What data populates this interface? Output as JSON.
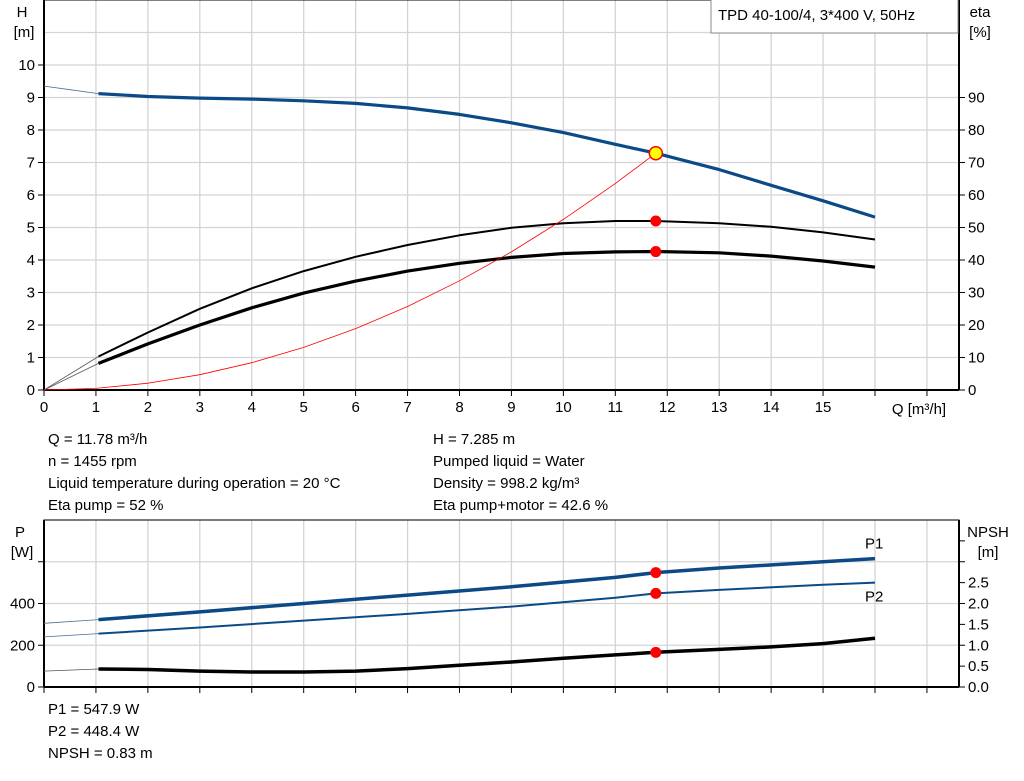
{
  "chart_data": [
    {
      "type": "line",
      "title": "TPD 40-100/4, 3*400 V, 50Hz",
      "xlabel": "Q [m³/h]",
      "ylabel": "H\n[m]",
      "ylabel_left": {
        "name": "H",
        "unit": "[m]"
      },
      "ylabel_right": {
        "name": "eta",
        "unit": "[%]"
      },
      "xlim": [
        0,
        17.6
      ],
      "ylim": [
        0,
        12
      ],
      "ylim_right": [
        0,
        120
      ],
      "x_ticks": [
        "0",
        "1",
        "2",
        "3",
        "4",
        "5",
        "6",
        "7",
        "8",
        "9",
        "10",
        "11",
        "12",
        "13",
        "14",
        "15"
      ],
      "y_ticks": [
        "0",
        "1",
        "2",
        "3",
        "4",
        "5",
        "6",
        "7",
        "8",
        "9",
        "10"
      ],
      "y_ticks_right": [
        "0",
        "10",
        "20",
        "30",
        "40",
        "50",
        "60",
        "70",
        "80",
        "90"
      ],
      "grid": true,
      "series": [
        {
          "id": "head",
          "axis": "left",
          "color": "#0b4a86",
          "extension": [
            [
              0,
              9.35
            ],
            [
              0.5,
              9.24
            ],
            [
              1.05,
              9.12
            ]
          ],
          "points": [
            [
              1.05,
              9.12
            ],
            [
              2,
              9.03
            ],
            [
              3,
              8.98
            ],
            [
              4,
              8.95
            ],
            [
              5,
              8.9
            ],
            [
              6,
              8.82
            ],
            [
              7,
              8.68
            ],
            [
              8,
              8.48
            ],
            [
              9,
              8.22
            ],
            [
              10,
              7.92
            ],
            [
              11,
              7.56
            ],
            [
              11.78,
              7.285
            ],
            [
              13,
              6.78
            ],
            [
              14,
              6.3
            ],
            [
              15,
              5.82
            ],
            [
              16,
              5.32
            ]
          ]
        },
        {
          "id": "eta-pump",
          "axis": "right",
          "color": "#000000",
          "extension": [
            [
              0,
              0
            ],
            [
              1.05,
              10.3
            ]
          ],
          "points": [
            [
              1.05,
              10.3
            ],
            [
              2,
              17.7
            ],
            [
              3,
              25
            ],
            [
              4,
              31.3
            ],
            [
              5,
              36.6
            ],
            [
              6,
              41
            ],
            [
              7,
              44.6
            ],
            [
              8,
              47.6
            ],
            [
              9,
              49.9
            ],
            [
              10,
              51.3
            ],
            [
              11,
              52
            ],
            [
              11.78,
              52
            ],
            [
              13,
              51.3
            ],
            [
              14,
              50.2
            ],
            [
              15,
              48.5
            ],
            [
              16,
              46.3
            ]
          ]
        },
        {
          "id": "eta-pump-motor",
          "axis": "right",
          "color": "#000000",
          "extension": [
            [
              0,
              0
            ],
            [
              1.05,
              8.2
            ]
          ],
          "points": [
            [
              1.05,
              8.2
            ],
            [
              2,
              14.2
            ],
            [
              3,
              20
            ],
            [
              4,
              25.3
            ],
            [
              5,
              29.8
            ],
            [
              6,
              33.5
            ],
            [
              7,
              36.6
            ],
            [
              8,
              39
            ],
            [
              9,
              40.8
            ],
            [
              10,
              42
            ],
            [
              11,
              42.5
            ],
            [
              11.78,
              42.6
            ],
            [
              13,
              42.2
            ],
            [
              14,
              41.2
            ],
            [
              15,
              39.7
            ],
            [
              16,
              37.8
            ]
          ]
        },
        {
          "id": "system-curve",
          "axis": "left",
          "color": "#ff0000",
          "points": [
            [
              0,
              0
            ],
            [
              1,
              0.05
            ],
            [
              2,
              0.21
            ],
            [
              3,
              0.47
            ],
            [
              4,
              0.84
            ],
            [
              5,
              1.31
            ],
            [
              6,
              1.89
            ],
            [
              7,
              2.57
            ],
            [
              8,
              3.36
            ],
            [
              9,
              4.25
            ],
            [
              10,
              5.25
            ],
            [
              11,
              6.35
            ],
            [
              11.78,
              7.285
            ]
          ]
        }
      ],
      "markers": [
        {
          "id": "duty-point-head",
          "x": 11.78,
          "y": 7.285,
          "axis": "left",
          "fill": "#ffff00",
          "stroke": "#ff0000"
        },
        {
          "id": "duty-point-eta-pump",
          "x": 11.78,
          "y": 52,
          "axis": "right",
          "fill": "#ff0000"
        },
        {
          "id": "duty-point-eta-pump-motor",
          "x": 11.78,
          "y": 42.6,
          "axis": "right",
          "fill": "#ff0000"
        }
      ]
    },
    {
      "type": "line",
      "ylabel_left": {
        "name": "P",
        "unit": "[W]"
      },
      "ylabel_right": {
        "name": "NPSH",
        "unit": "[m]"
      },
      "xlim": [
        0,
        17.6
      ],
      "ylim": [
        0,
        800
      ],
      "ylim_right": [
        0,
        4
      ],
      "y_ticks": [
        "0",
        "200",
        "400"
      ],
      "y_ticks_right": [
        "0.0",
        "0.5",
        "1.0",
        "1.5",
        "2.0",
        "2.5"
      ],
      "grid": true,
      "series": [
        {
          "id": "p1",
          "name": "P1",
          "axis": "left",
          "color": "#0b4a86",
          "extension": [
            [
              0,
              305
            ],
            [
              1.05,
              323
            ]
          ],
          "points": [
            [
              1.05,
              323
            ],
            [
              3,
              360
            ],
            [
              5,
              400
            ],
            [
              7,
              440
            ],
            [
              9,
              480
            ],
            [
              11,
              525
            ],
            [
              11.78,
              547.9
            ],
            [
              13,
              570
            ],
            [
              15,
              600
            ],
            [
              16,
              615
            ]
          ]
        },
        {
          "id": "p2",
          "name": "P2",
          "axis": "left",
          "color": "#0b4a86",
          "extension": [
            [
              0,
              240
            ],
            [
              1.05,
              256
            ]
          ],
          "points": [
            [
              1.05,
              256
            ],
            [
              3,
              285
            ],
            [
              5,
              318
            ],
            [
              7,
              350
            ],
            [
              9,
              385
            ],
            [
              11,
              428
            ],
            [
              11.78,
              448.4
            ],
            [
              13,
              465
            ],
            [
              15,
              490
            ],
            [
              16,
              500
            ]
          ]
        },
        {
          "id": "npsh",
          "axis": "right",
          "color": "#000000",
          "extension": [
            [
              0,
              0.38
            ],
            [
              1.05,
              0.43
            ]
          ],
          "points": [
            [
              1.05,
              0.43
            ],
            [
              2,
              0.42
            ],
            [
              3,
              0.38
            ],
            [
              4,
              0.36
            ],
            [
              5,
              0.36
            ],
            [
              6,
              0.38
            ],
            [
              7,
              0.44
            ],
            [
              8,
              0.52
            ],
            [
              9,
              0.6
            ],
            [
              10,
              0.69
            ],
            [
              11,
              0.77
            ],
            [
              11.78,
              0.83
            ],
            [
              13,
              0.9
            ],
            [
              14,
              0.96
            ],
            [
              15,
              1.04
            ],
            [
              16,
              1.17
            ]
          ]
        }
      ],
      "markers": [
        {
          "id": "duty-point-p1",
          "x": 11.78,
          "y": 547.9,
          "axis": "left",
          "fill": "#ff0000"
        },
        {
          "id": "duty-point-p2",
          "x": 11.78,
          "y": 448.4,
          "axis": "left",
          "fill": "#ff0000"
        },
        {
          "id": "duty-point-npsh",
          "x": 11.78,
          "y": 0.83,
          "axis": "right",
          "fill": "#ff0000"
        }
      ]
    }
  ],
  "duty_point": {
    "left": [
      "Q = 11.78 m³/h",
      "n = 1455 rpm",
      "Liquid temperature during operation = 20 °C",
      "Eta pump = 52 %"
    ],
    "right": [
      "H = 7.285 m",
      "Pumped liquid = Water",
      "Density = 998.2 kg/m³",
      "Eta pump+motor = 42.6 %"
    ]
  },
  "power_results": [
    "P1 = 547.9 W",
    "P2 = 448.4 W",
    "NPSH = 0.83 m"
  ]
}
